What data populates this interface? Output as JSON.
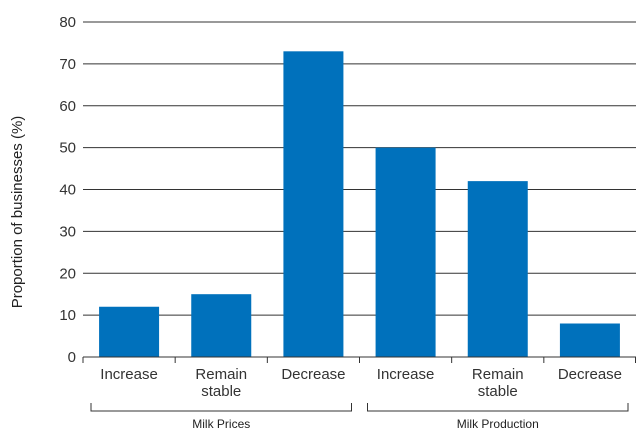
{
  "chart_data": {
    "type": "bar",
    "categories": [
      "Increase",
      "Remain stable",
      "Decrease",
      "Increase",
      "Remain stable",
      "Decrease"
    ],
    "category_lines": [
      [
        "Increase"
      ],
      [
        "Remain",
        "stable"
      ],
      [
        "Decrease"
      ],
      [
        "Increase"
      ],
      [
        "Remain",
        "stable"
      ],
      [
        "Decrease"
      ]
    ],
    "values": [
      12,
      15,
      73,
      50,
      42,
      8
    ],
    "groups": [
      {
        "label": "Milk Prices",
        "start": 0,
        "end": 2
      },
      {
        "label": "Milk Production",
        "start": 3,
        "end": 5
      }
    ],
    "title": "",
    "xlabel": "",
    "ylabel": "Proportion of businesses (%)",
    "ylim": [
      0,
      80
    ],
    "yticks": [
      0,
      10,
      20,
      30,
      40,
      50,
      60,
      70,
      80
    ],
    "grid": true,
    "bar_color": "#0071BC"
  }
}
